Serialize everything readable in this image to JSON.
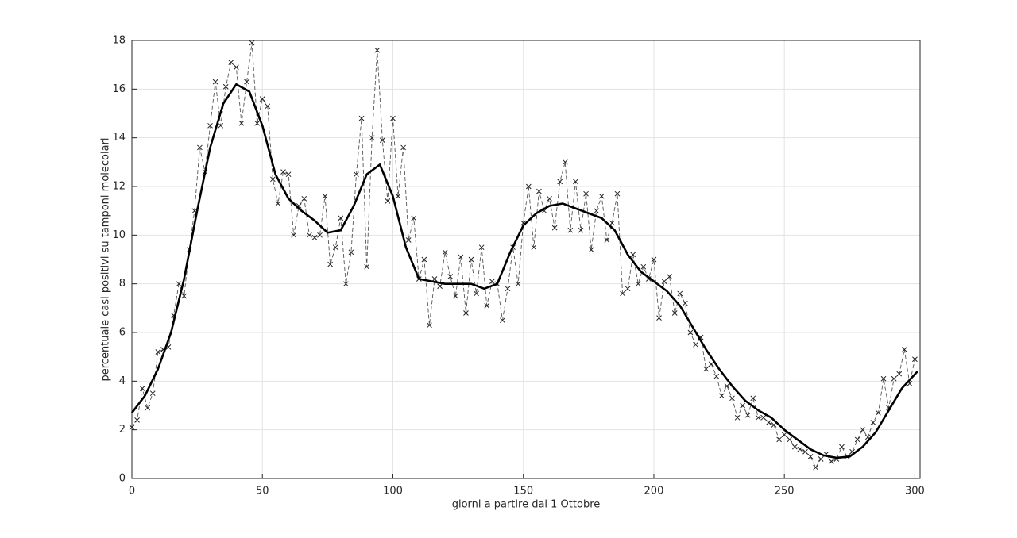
{
  "chart_data": {
    "type": "line",
    "xlabel": "giorni a partire dal 1 Ottobre",
    "ylabel": "percentuale casi positivi su tamponi molecolari",
    "xlim": [
      0,
      302
    ],
    "ylim": [
      0,
      18
    ],
    "xticks": [
      0,
      50,
      100,
      150,
      200,
      250,
      300
    ],
    "yticks": [
      0,
      2,
      4,
      6,
      8,
      10,
      12,
      14,
      16,
      18
    ],
    "grid": true,
    "series": [
      {
        "color": "#555555",
        "style": "dashed",
        "marker": "x",
        "x": [
          0,
          2,
          4,
          6,
          8,
          10,
          12,
          14,
          16,
          18,
          20,
          22,
          24,
          26,
          28,
          30,
          32,
          34,
          36,
          38,
          40,
          42,
          44,
          46,
          48,
          50,
          52,
          54,
          56,
          58,
          60,
          62,
          64,
          66,
          68,
          70,
          72,
          74,
          76,
          78,
          80,
          82,
          84,
          86,
          88,
          90,
          92,
          94,
          96,
          98,
          100,
          102,
          104,
          106,
          108,
          110,
          112,
          114,
          116,
          118,
          120,
          122,
          124,
          126,
          128,
          130,
          132,
          134,
          136,
          138,
          140,
          142,
          144,
          146,
          148,
          150,
          152,
          154,
          156,
          158,
          160,
          162,
          164,
          166,
          168,
          170,
          172,
          174,
          176,
          178,
          180,
          182,
          184,
          186,
          188,
          190,
          192,
          194,
          196,
          198,
          200,
          202,
          204,
          206,
          208,
          210,
          212,
          214,
          216,
          218,
          220,
          222,
          224,
          226,
          228,
          230,
          232,
          234,
          236,
          238,
          240,
          242,
          244,
          246,
          248,
          250,
          252,
          254,
          256,
          258,
          260,
          262,
          264,
          266,
          268,
          270,
          272,
          274,
          276,
          278,
          280,
          282,
          284,
          286,
          288,
          290,
          292,
          294,
          296,
          298,
          300
        ],
        "values": [
          2.1,
          2.4,
          3.7,
          2.9,
          3.5,
          5.2,
          5.3,
          5.4,
          6.7,
          8.0,
          7.5,
          9.4,
          11.0,
          13.6,
          12.6,
          14.5,
          16.3,
          14.5,
          16.1,
          17.1,
          16.9,
          14.6,
          16.3,
          17.9,
          14.6,
          15.6,
          15.3,
          12.3,
          11.3,
          12.6,
          12.5,
          10.0,
          11.2,
          11.5,
          10.0,
          9.9,
          10.0,
          11.6,
          8.8,
          9.5,
          10.7,
          8.0,
          9.3,
          12.5,
          14.8,
          8.7,
          14.0,
          17.6,
          13.9,
          11.4,
          14.8,
          11.6,
          13.6,
          9.8,
          10.7,
          8.2,
          9.0,
          6.3,
          8.2,
          7.9,
          9.3,
          8.3,
          7.5,
          9.1,
          6.8,
          9.0,
          7.6,
          9.5,
          7.1,
          8.1,
          8.0,
          6.5,
          7.8,
          9.5,
          8.0,
          10.5,
          12.0,
          9.5,
          11.8,
          11.0,
          11.5,
          10.3,
          12.2,
          13.0,
          10.2,
          12.2,
          10.2,
          11.7,
          9.4,
          11.0,
          11.6,
          9.8,
          10.5,
          11.7,
          7.6,
          7.8,
          9.2,
          8.0,
          8.7,
          8.2,
          9.0,
          6.6,
          8.1,
          8.3,
          6.8,
          7.6,
          7.2,
          6.0,
          5.5,
          5.8,
          4.5,
          4.7,
          4.2,
          3.4,
          3.8,
          3.3,
          2.5,
          3.0,
          2.6,
          3.3,
          2.5,
          2.5,
          2.3,
          2.2,
          1.6,
          1.8,
          1.6,
          1.3,
          1.2,
          1.1,
          0.9,
          0.45,
          0.8,
          1.0,
          0.7,
          0.8,
          1.3,
          0.9,
          1.1,
          1.6,
          2.0,
          1.7,
          2.3,
          2.7,
          4.1,
          2.9,
          4.1,
          4.3,
          5.3,
          3.9,
          4.9
        ]
      },
      {
        "color": "#000000",
        "style": "solid",
        "x": [
          0,
          5,
          10,
          15,
          20,
          25,
          30,
          35,
          40,
          45,
          50,
          55,
          60,
          65,
          70,
          75,
          80,
          85,
          90,
          95,
          100,
          105,
          110,
          115,
          120,
          125,
          130,
          135,
          140,
          145,
          150,
          155,
          160,
          165,
          170,
          175,
          180,
          185,
          190,
          195,
          200,
          205,
          210,
          215,
          220,
          225,
          230,
          235,
          240,
          245,
          250,
          255,
          260,
          265,
          270,
          275,
          280,
          285,
          290,
          295,
          301
        ],
        "values": [
          2.7,
          3.4,
          4.5,
          6.0,
          8.2,
          11.0,
          13.6,
          15.4,
          16.2,
          15.9,
          14.5,
          12.5,
          11.5,
          11.0,
          10.6,
          10.1,
          10.2,
          11.2,
          12.5,
          12.9,
          11.6,
          9.5,
          8.2,
          8.1,
          8.0,
          8.0,
          8.0,
          7.8,
          8.0,
          9.3,
          10.4,
          10.9,
          11.2,
          11.3,
          11.1,
          10.9,
          10.7,
          10.2,
          9.2,
          8.5,
          8.1,
          7.7,
          7.1,
          6.2,
          5.3,
          4.5,
          3.8,
          3.2,
          2.8,
          2.5,
          2.0,
          1.6,
          1.2,
          0.95,
          0.85,
          0.9,
          1.3,
          1.9,
          2.8,
          3.7,
          4.4
        ]
      }
    ]
  }
}
